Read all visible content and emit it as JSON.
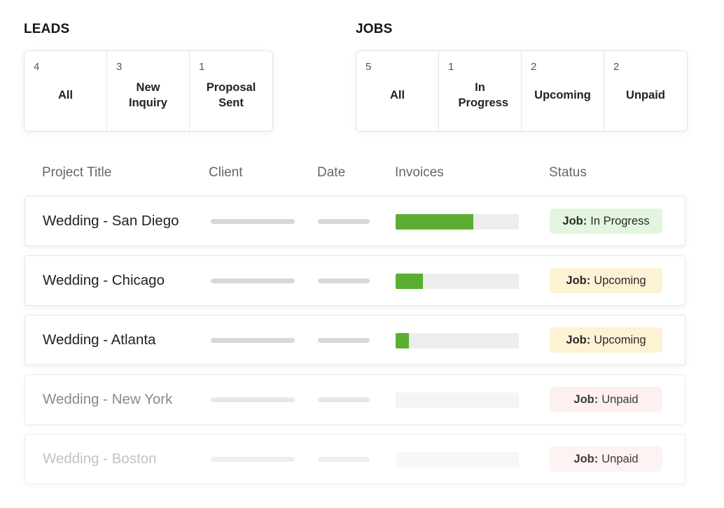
{
  "leads": {
    "title": "LEADS",
    "tabs": [
      {
        "count": "4",
        "label": "All"
      },
      {
        "count": "3",
        "label": "New Inquiry"
      },
      {
        "count": "1",
        "label": "Proposal Sent"
      }
    ]
  },
  "jobs": {
    "title": "JOBS",
    "tabs": [
      {
        "count": "5",
        "label": "All"
      },
      {
        "count": "1",
        "label": "In Progress"
      },
      {
        "count": "2",
        "label": "Upcoming"
      },
      {
        "count": "2",
        "label": "Unpaid"
      }
    ]
  },
  "table": {
    "columns": {
      "project_title": "Project Title",
      "client": "Client",
      "date": "Date",
      "invoices": "Invoices",
      "status": "Status"
    },
    "rows": [
      {
        "title": "Wedding - San Diego",
        "invoice_progress": 0.63,
        "status_prefix": "Job:",
        "status_text": "In Progress",
        "status_color": "#e3f5de"
      },
      {
        "title": "Wedding - Chicago",
        "invoice_progress": 0.22,
        "status_prefix": "Job:",
        "status_text": "Upcoming",
        "status_color": "#fdf2d3"
      },
      {
        "title": "Wedding - Atlanta",
        "invoice_progress": 0.11,
        "status_prefix": "Job:",
        "status_text": "Upcoming",
        "status_color": "#fdf2d3"
      },
      {
        "title": "Wedding - New York",
        "invoice_progress": 0,
        "status_prefix": "Job:",
        "status_text": "Unpaid",
        "status_color": "#fdf1f0"
      },
      {
        "title": "Wedding - Boston",
        "invoice_progress": 0,
        "status_prefix": "Job:",
        "status_text": "Unpaid",
        "status_color": "#fdf3f2"
      }
    ]
  },
  "colors": {
    "progress_fill": "#5cae33",
    "in_progress_badge": "#e3f5de",
    "upcoming_badge": "#fdf2d3",
    "unpaid_badge": "#fdf1f0"
  }
}
